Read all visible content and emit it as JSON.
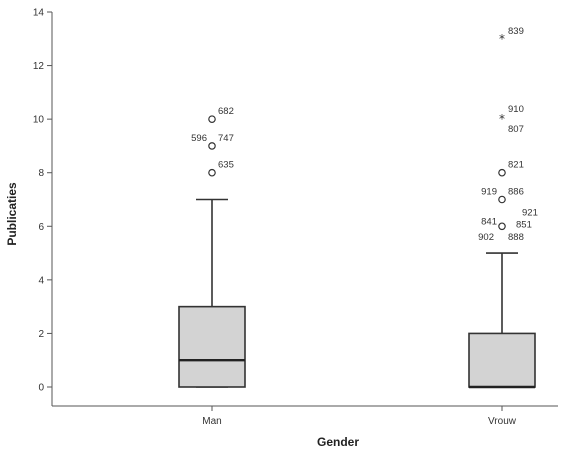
{
  "chart_data": {
    "type": "boxplot",
    "xlabel": "Gender",
    "ylabel": "Publicaties",
    "ylim": [
      -0.8,
      14
    ],
    "yticks": [
      0,
      2,
      4,
      6,
      8,
      10,
      12,
      14
    ],
    "ytick_labels": [
      "0",
      "2",
      "4",
      "6",
      "8",
      "10",
      "12",
      "14"
    ],
    "grid": false,
    "colors": {
      "box_fill": "#d3d3d3",
      "line": "#333333",
      "axis": "#555555"
    },
    "groups": [
      {
        "category": "Man",
        "whisker_low": 0,
        "q1": 0,
        "median": 1,
        "q3": 3,
        "whisker_high": 7,
        "outliers": [
          {
            "value": 10,
            "marker": "circle",
            "labels": [
              "682"
            ]
          },
          {
            "value": 9,
            "marker": "circle",
            "labels": [
              "596",
              "747"
            ]
          },
          {
            "value": 8,
            "marker": "circle",
            "labels": [
              "635"
            ]
          }
        ]
      },
      {
        "category": "Vrouw",
        "whisker_low": 0,
        "q1": 0,
        "median": 0,
        "q3": 2,
        "whisker_high": 5,
        "outliers": [
          {
            "value": 13,
            "marker": "star",
            "labels": [
              "839"
            ]
          },
          {
            "value": 10,
            "marker": "star",
            "labels": [
              "910",
              "807"
            ]
          },
          {
            "value": 8,
            "marker": "circle",
            "labels": [
              "821"
            ]
          },
          {
            "value": 7,
            "marker": "circle",
            "labels": [
              "919",
              "886"
            ]
          },
          {
            "value": 6,
            "marker": "circle",
            "labels": [
              "841",
              "921",
              "851"
            ]
          },
          {
            "value": 5.6,
            "marker": "none",
            "labels": [
              "902",
              "888"
            ]
          }
        ]
      }
    ]
  }
}
